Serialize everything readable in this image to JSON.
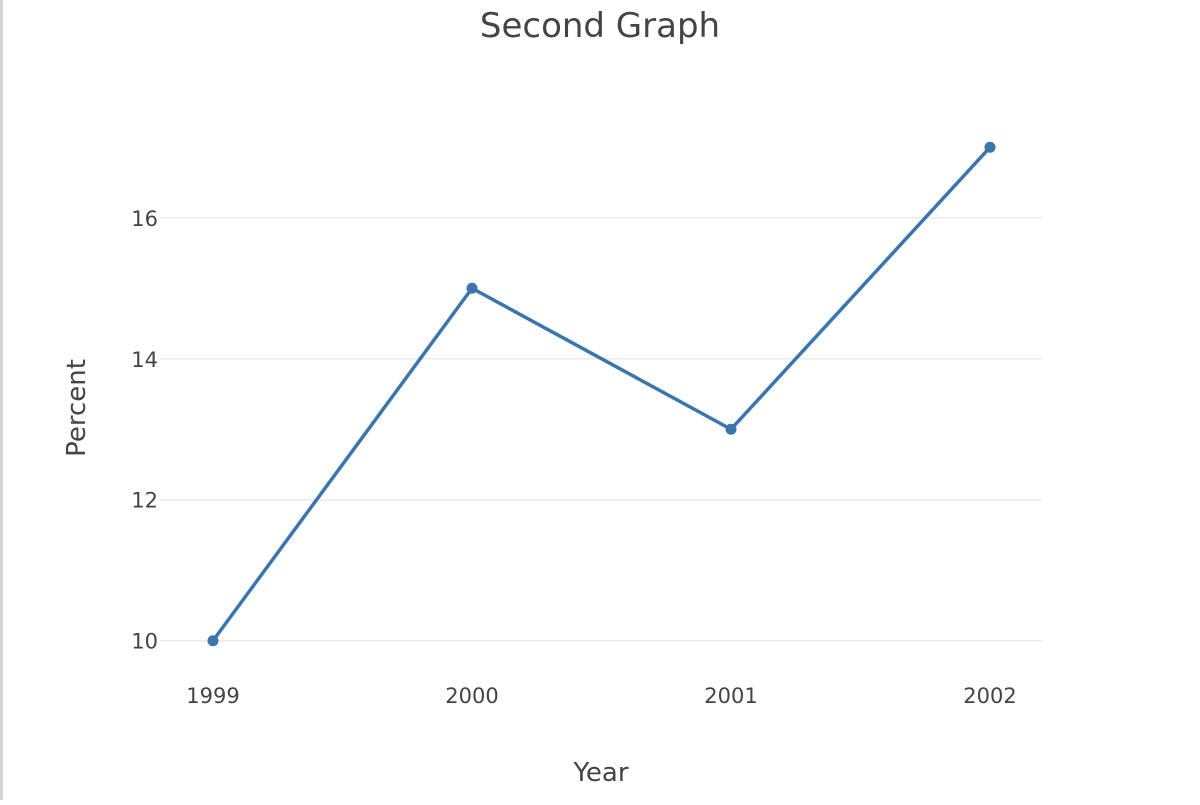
{
  "chart_data": {
    "type": "line",
    "title": "Second Graph",
    "xlabel": "Year",
    "ylabel": "Percent",
    "x": [
      "1999",
      "2000",
      "2001",
      "2002"
    ],
    "series": [
      {
        "values": [
          10,
          15,
          13,
          17
        ],
        "color": "#3a75ae"
      }
    ],
    "yticks": [
      10,
      12,
      14,
      16
    ],
    "ylim": [
      9.4,
      17.6
    ],
    "grid": true,
    "markers": true
  }
}
